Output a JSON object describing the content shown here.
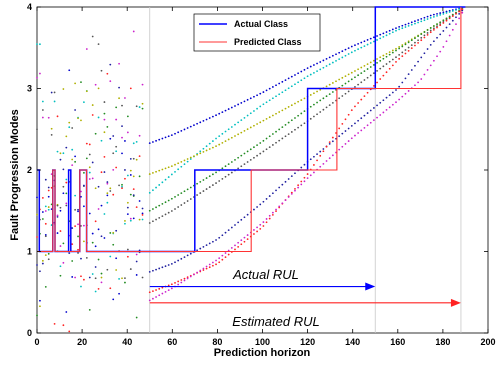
{
  "chart_data": {
    "type": "line",
    "xlabel": "Prediction horizon",
    "ylabel": "Fault Progression Modes",
    "xlim": [
      0,
      200
    ],
    "ylim": [
      0,
      4
    ],
    "x_ticks": [
      "0",
      "20",
      "40",
      "60",
      "80",
      "100",
      "120",
      "140",
      "160",
      "180",
      "200"
    ],
    "y_ticks": [
      "0",
      "1",
      "2",
      "3",
      "4"
    ],
    "grid": false,
    "legend_position": "top-center",
    "reference_lines_x": [
      50,
      150,
      188
    ],
    "series": [
      {
        "name": "Actual Class",
        "color": "#0000ff",
        "style": "line",
        "points": [
          [
            0,
            2
          ],
          [
            1,
            2
          ],
          [
            1,
            1
          ],
          [
            7,
            1
          ],
          [
            7,
            2
          ],
          [
            8,
            2
          ],
          [
            8,
            1
          ],
          [
            14,
            1
          ],
          [
            14,
            2
          ],
          [
            15,
            2
          ],
          [
            15,
            1
          ],
          [
            19,
            1
          ],
          [
            19,
            2
          ],
          [
            22,
            2
          ],
          [
            22,
            1
          ],
          [
            70,
            1
          ],
          [
            70,
            2
          ],
          [
            120,
            2
          ],
          [
            120,
            3
          ],
          [
            150,
            3
          ],
          [
            150,
            4
          ],
          [
            190,
            4
          ]
        ]
      },
      {
        "name": "Predicted Class",
        "color": "#ff3333",
        "style": "line",
        "points": [
          [
            0,
            1
          ],
          [
            7,
            1
          ],
          [
            7,
            2
          ],
          [
            8,
            2
          ],
          [
            8,
            1
          ],
          [
            19,
            1
          ],
          [
            19,
            2
          ],
          [
            22,
            2
          ],
          [
            22,
            1
          ],
          [
            95,
            1
          ],
          [
            95,
            2
          ],
          [
            133,
            2
          ],
          [
            133,
            3
          ],
          [
            188,
            3
          ],
          [
            188,
            4
          ]
        ]
      },
      {
        "color": "#0000cc",
        "style": "dotted",
        "points": [
          [
            50,
            2.33
          ],
          [
            60,
            2.43
          ],
          [
            80,
            2.68
          ],
          [
            100,
            2.95
          ],
          [
            120,
            3.25
          ],
          [
            140,
            3.52
          ],
          [
            160,
            3.75
          ],
          [
            175,
            3.9
          ],
          [
            190,
            4
          ]
        ]
      },
      {
        "color": "#00bfbf",
        "style": "dotted",
        "points": [
          [
            50,
            1.72
          ],
          [
            60,
            1.95
          ],
          [
            80,
            2.4
          ],
          [
            100,
            2.8
          ],
          [
            120,
            3.15
          ],
          [
            140,
            3.45
          ],
          [
            160,
            3.72
          ],
          [
            175,
            3.87
          ],
          [
            190,
            4
          ]
        ]
      },
      {
        "color": "#b0b000",
        "style": "dotted",
        "points": [
          [
            50,
            1.95
          ],
          [
            60,
            2.05
          ],
          [
            80,
            2.3
          ],
          [
            100,
            2.6
          ],
          [
            120,
            2.9
          ],
          [
            140,
            3.2
          ],
          [
            160,
            3.5
          ],
          [
            175,
            3.75
          ],
          [
            190,
            4
          ]
        ]
      },
      {
        "color": "#228b22",
        "style": "dotted",
        "points": [
          [
            50,
            1.5
          ],
          [
            60,
            1.65
          ],
          [
            80,
            1.98
          ],
          [
            100,
            2.35
          ],
          [
            120,
            2.75
          ],
          [
            140,
            3.12
          ],
          [
            160,
            3.48
          ],
          [
            175,
            3.75
          ],
          [
            190,
            4
          ]
        ]
      },
      {
        "color": "#555555",
        "style": "dotted",
        "points": [
          [
            50,
            1.35
          ],
          [
            60,
            1.5
          ],
          [
            80,
            1.85
          ],
          [
            100,
            2.22
          ],
          [
            120,
            2.6
          ],
          [
            140,
            3.0
          ],
          [
            160,
            3.4
          ],
          [
            175,
            3.72
          ],
          [
            190,
            4
          ]
        ]
      },
      {
        "color": "#2020a0",
        "style": "dotted",
        "points": [
          [
            50,
            0.75
          ],
          [
            60,
            0.85
          ],
          [
            80,
            1.15
          ],
          [
            100,
            1.6
          ],
          [
            120,
            2.1
          ],
          [
            140,
            2.55
          ],
          [
            160,
            3.0
          ],
          [
            175,
            3.55
          ],
          [
            190,
            4
          ]
        ]
      },
      {
        "color": "#ff2222",
        "style": "dotted",
        "points": [
          [
            50,
            0.5
          ],
          [
            60,
            0.6
          ],
          [
            80,
            0.85
          ],
          [
            100,
            1.3
          ],
          [
            120,
            1.95
          ],
          [
            130,
            2.35
          ],
          [
            140,
            2.75
          ],
          [
            160,
            3.35
          ],
          [
            175,
            3.7
          ],
          [
            190,
            4
          ]
        ]
      },
      {
        "color": "#cc22cc",
        "style": "dotted",
        "points": [
          [
            50,
            0.4
          ],
          [
            60,
            0.55
          ],
          [
            80,
            0.9
          ],
          [
            100,
            1.35
          ],
          [
            120,
            1.9
          ],
          [
            140,
            2.4
          ],
          [
            160,
            2.85
          ],
          [
            170,
            3.1
          ],
          [
            180,
            3.5
          ],
          [
            190,
            4
          ]
        ]
      }
    ],
    "annotations": [
      {
        "text": "Actual RUL",
        "x_start": 50,
        "x_end": 150,
        "y": 0.57,
        "color": "#0000ff"
      },
      {
        "text": "Estimated RUL",
        "x_start": 50,
        "x_end": 188,
        "y": 0.37,
        "color": "#ff2222"
      }
    ]
  }
}
